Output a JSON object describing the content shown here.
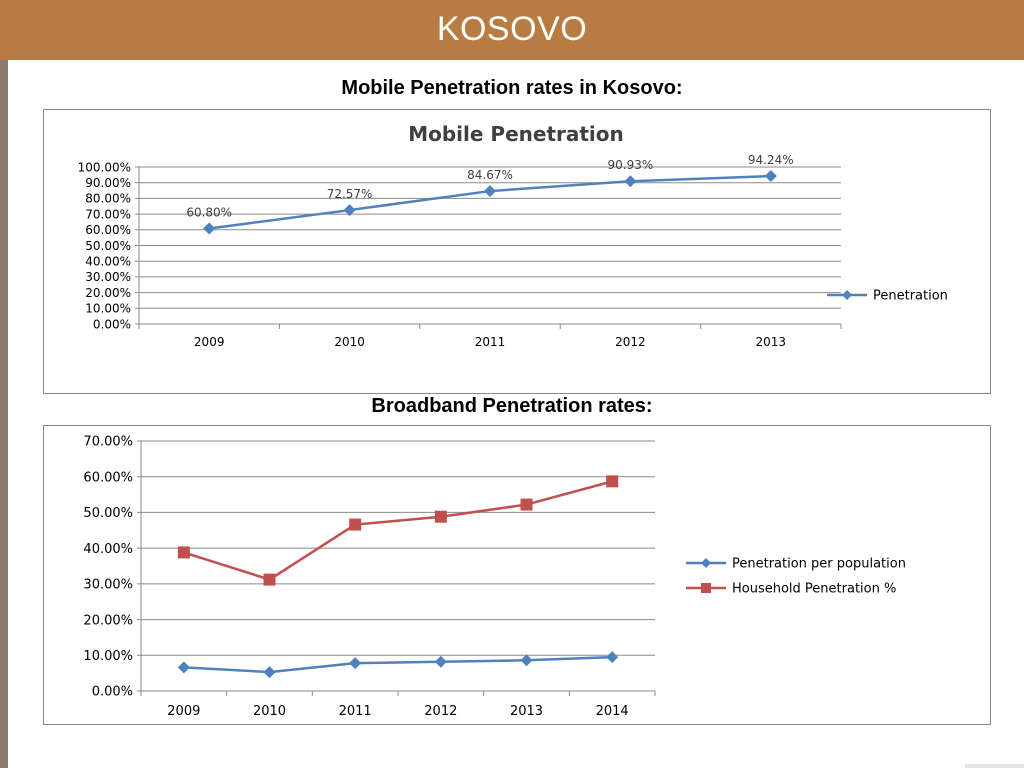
{
  "slide": {
    "title": "KOSOVO",
    "subtitle_mobile": "Mobile Penetration rates in Kosovo:",
    "subtitle_broadband": "Broadband Penetration rates:"
  },
  "colors": {
    "header": "#b87c42",
    "series_blue": "#4f81bd",
    "series_red": "#c0504d"
  },
  "chart_data": [
    {
      "type": "line",
      "title": "Mobile Penetration",
      "x": [
        "2009",
        "2010",
        "2011",
        "2012",
        "2013"
      ],
      "series": [
        {
          "name": "Penetration",
          "values": [
            60.8,
            72.57,
            84.67,
            90.93,
            94.24
          ],
          "data_labels": [
            "60.80%",
            "72.57%",
            "84.67%",
            "90.93%",
            "94.24%"
          ],
          "marker": "diamond",
          "color": "#4f81bd"
        }
      ],
      "yticks": [
        "0.00%",
        "10.00%",
        "20.00%",
        "30.00%",
        "40.00%",
        "50.00%",
        "60.00%",
        "70.00%",
        "80.00%",
        "90.00%",
        "100.00%"
      ],
      "ylim": [
        0,
        100
      ],
      "grid": true,
      "legend": "right"
    },
    {
      "type": "line",
      "title": "",
      "x": [
        "2009",
        "2010",
        "2011",
        "2012",
        "2013",
        "2014"
      ],
      "series": [
        {
          "name": "Penetration per population",
          "values": [
            6.6,
            5.3,
            7.8,
            8.2,
            8.6,
            9.5
          ],
          "marker": "diamond",
          "color": "#4f81bd"
        },
        {
          "name": "Household Penetration %",
          "values": [
            38.8,
            31.2,
            46.6,
            48.8,
            52.2,
            58.7
          ],
          "marker": "square",
          "color": "#c0504d"
        }
      ],
      "yticks": [
        "0.00%",
        "10.00%",
        "20.00%",
        "30.00%",
        "40.00%",
        "50.00%",
        "60.00%",
        "70.00%"
      ],
      "ylim": [
        0,
        70
      ],
      "grid": true,
      "legend": "right"
    }
  ]
}
